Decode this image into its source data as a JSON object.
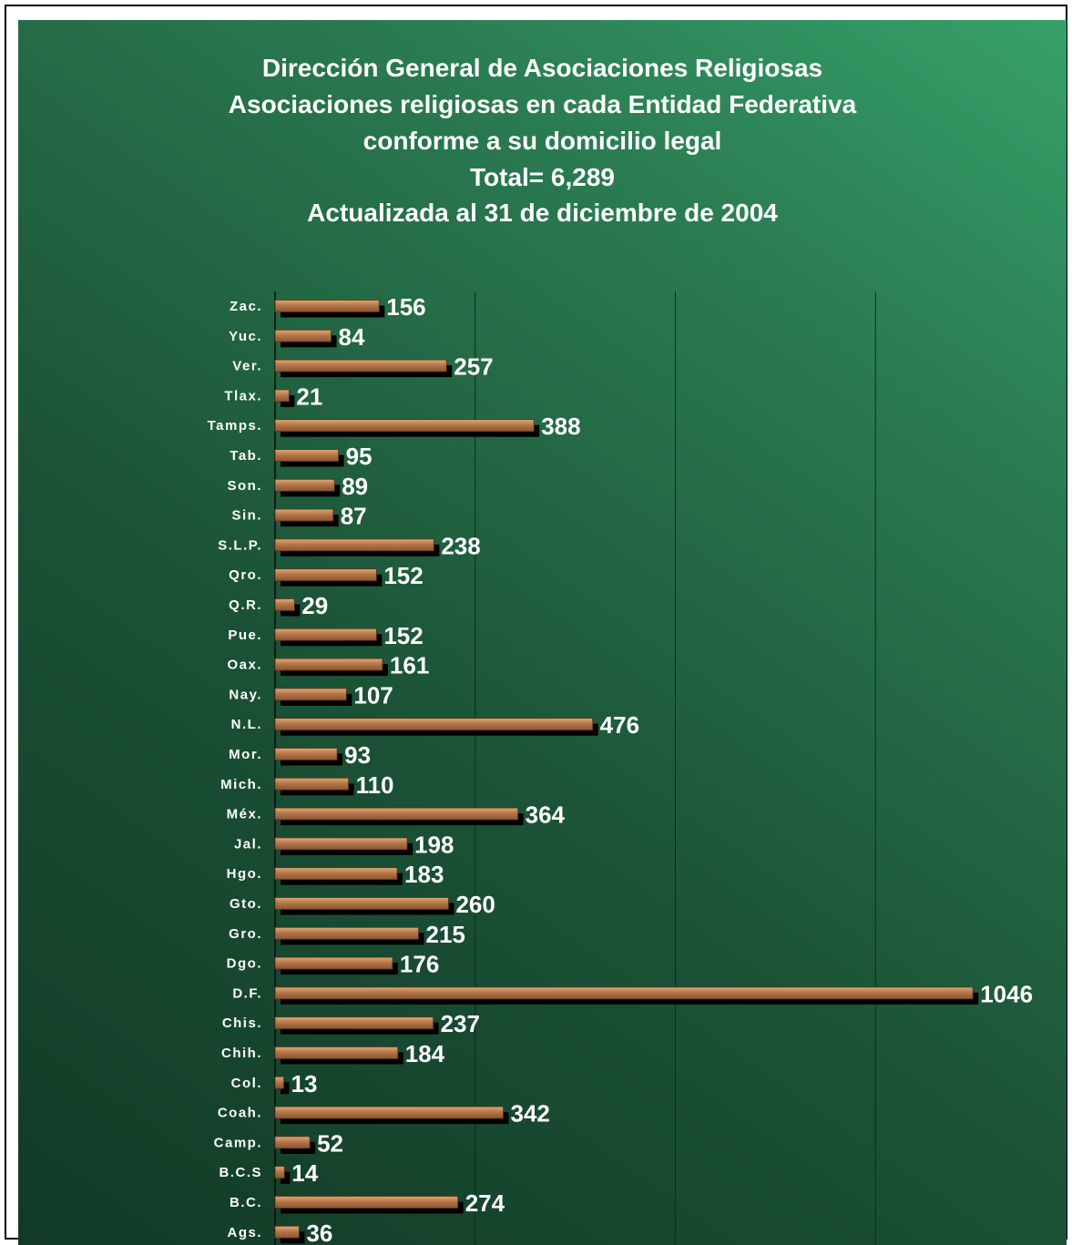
{
  "chart_data": {
    "type": "bar",
    "orientation": "horizontal",
    "title_lines": [
      "Dirección General de Asociaciones Religiosas",
      "Asociaciones religiosas en cada Entidad Federativa",
      "conforme a su domicilio legal",
      "Total= 6,289",
      "Actualizada al 31 de diciembre de 2004"
    ],
    "categories": [
      "Zac.",
      "Yuc.",
      "Ver.",
      "Tlax.",
      "Tamps.",
      "Tab.",
      "Son.",
      "Sin.",
      "S.L.P.",
      "Qro.",
      "Q.R.",
      "Pue.",
      "Oax.",
      "Nay.",
      "N.L.",
      "Mor.",
      "Mich.",
      "Méx.",
      "Jal.",
      "Hgo.",
      "Gto.",
      "Gro.",
      "Dgo.",
      "D.F.",
      "Chis.",
      "Chih.",
      "Col.",
      "Coah.",
      "Camp.",
      "B.C.S",
      "B.C.",
      "Ags."
    ],
    "values": [
      156,
      84,
      257,
      21,
      388,
      95,
      89,
      87,
      238,
      152,
      29,
      152,
      161,
      107,
      476,
      93,
      110,
      364,
      198,
      183,
      260,
      215,
      176,
      1046,
      237,
      184,
      13,
      342,
      52,
      14,
      274,
      36
    ],
    "xlim": [
      0,
      1200
    ],
    "grid": true,
    "legend": "none",
    "colors": {
      "bar": "#b5774a",
      "bar_highlight": "#d89a66",
      "shadow": "#000000",
      "text": "#ffffff",
      "background": "#1f5a3a",
      "grid": "#0d2e1d"
    }
  }
}
